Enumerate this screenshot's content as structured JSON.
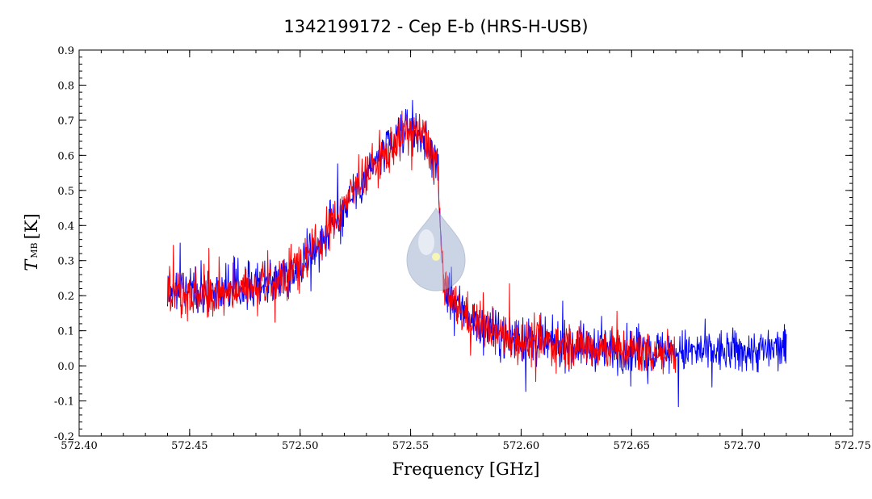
{
  "chart_data": {
    "type": "line",
    "title": "1342199172 - Cep E-b (HRS-H-USB)",
    "xlabel": "Frequency [GHz]",
    "ylabel_main": "T",
    "ylabel_sub": "MB",
    "ylabel_unit": "[K]",
    "xlim": [
      572.4,
      572.75
    ],
    "ylim": [
      -0.2,
      0.9
    ],
    "xticks": [
      "572.40",
      "572.45",
      "572.50",
      "572.55",
      "572.60",
      "572.65",
      "572.70",
      "572.75"
    ],
    "yticks": [
      "-0.2",
      "-0.1",
      "0.0",
      "0.1",
      "0.2",
      "0.3",
      "0.4",
      "0.5",
      "0.6",
      "0.7",
      "0.8",
      "0.9"
    ],
    "grid": false,
    "legend": "none",
    "series": [
      {
        "color": "#0000ff",
        "x": [
          572.44,
          572.46,
          572.48,
          572.49,
          572.5,
          572.51,
          572.52,
          572.53,
          572.54,
          572.545,
          572.55,
          572.555,
          572.56,
          572.562,
          572.565,
          572.57,
          572.58,
          572.59,
          572.6,
          572.62,
          572.64,
          572.66,
          572.68,
          572.7,
          572.72
        ],
        "y": [
          0.21,
          0.22,
          0.23,
          0.25,
          0.29,
          0.36,
          0.45,
          0.55,
          0.62,
          0.66,
          0.68,
          0.66,
          0.6,
          0.58,
          0.22,
          0.18,
          0.12,
          0.09,
          0.07,
          0.06,
          0.05,
          0.04,
          0.04,
          0.04,
          0.05
        ]
      },
      {
        "color": "#ff0000",
        "x": [
          572.44,
          572.45,
          572.46,
          572.47,
          572.48,
          572.49,
          572.5,
          572.51,
          572.52,
          572.53,
          572.54,
          572.545,
          572.55,
          572.555,
          572.56,
          572.562,
          572.565,
          572.57,
          572.58,
          572.59,
          572.6,
          572.62,
          572.64,
          572.66,
          572.67
        ],
        "y": [
          0.2,
          0.19,
          0.2,
          0.21,
          0.22,
          0.24,
          0.29,
          0.36,
          0.46,
          0.55,
          0.61,
          0.65,
          0.67,
          0.66,
          0.6,
          0.58,
          0.21,
          0.17,
          0.12,
          0.09,
          0.07,
          0.06,
          0.05,
          0.04,
          0.04
        ]
      }
    ]
  }
}
